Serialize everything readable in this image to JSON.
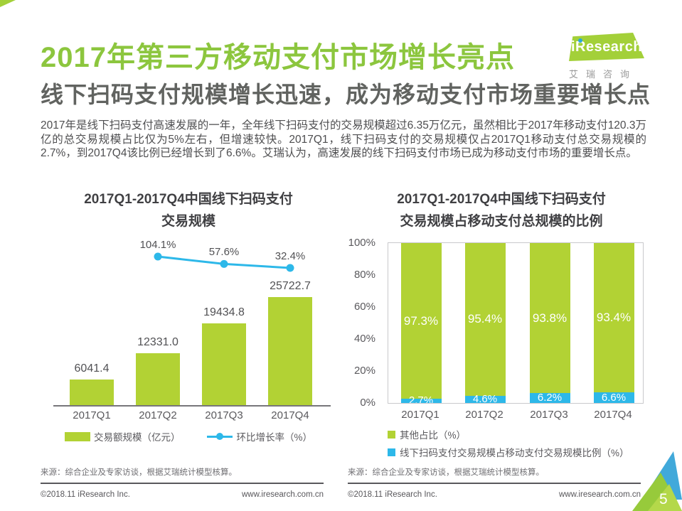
{
  "page": {
    "title": "2017年第三方移动支付市场增长亮点",
    "subtitle": "线下扫码支付规模增长迅速，成为移动支付市场重要增长点",
    "body": "2017年是线下扫码支付高速发展的一年，全年线下扫码支付的交易规模超过6.35万亿元，虽然相比于2017年移动支付120.3万亿的总交易规模占比仅为5%左右，但增速较快。2017Q1，线下扫码支付的交易规模仅占2017Q1移动支付总交易规模的2.7%，到2017Q4该比例已经增长到了6.6%。艾瑞认为，高速发展的线下扫码支付市场已成为移动支付市场的重要增长点。",
    "page_number": "5"
  },
  "logo": {
    "brand": "iResearch",
    "brand_cn": "艾瑞咨询"
  },
  "colors": {
    "title_green": "#8cc63e",
    "logo_green": "#a3d039",
    "bar_green": "#b2d234",
    "line_blue": "#2db8e9",
    "text_dark": "#4e4e50",
    "text_gray": "#6e6d71"
  },
  "chart_data": [
    {
      "type": "bar",
      "title": "2017Q1-2017Q4中国线下扫码支付交易规模",
      "title_lines": [
        "2017Q1-2017Q4中国线下扫码支付",
        "交易规模"
      ],
      "categories": [
        "2017Q1",
        "2017Q2",
        "2017Q3",
        "2017Q4"
      ],
      "series": [
        {
          "name": "交易额规模（亿元）",
          "type": "bar",
          "color": "#b2d234",
          "values": [
            6041.4,
            12331.0,
            19434.8,
            25722.7
          ],
          "labels": [
            "6041.4",
            "12331.0",
            "19434.8",
            "25722.7"
          ]
        },
        {
          "name": "环比增长率（%）",
          "type": "line",
          "color": "#2db8e9",
          "values": [
            null,
            104.1,
            57.6,
            32.4
          ],
          "labels": [
            null,
            "104.1%",
            "57.6%",
            "32.4%"
          ]
        }
      ],
      "grid": false,
      "legend_position": "bottom",
      "source": "来源：综合企业及专家访谈，根据艾瑞统计模型核算。"
    },
    {
      "type": "bar",
      "subtype": "stacked-100",
      "title": "2017Q1-2017Q4中国线下扫码支付交易规模占移动支付总规模的比例",
      "title_lines": [
        "2017Q1-2017Q4中国线下扫码支付",
        "交易规模占移动支付总规模的比例"
      ],
      "categories": [
        "2017Q1",
        "2017Q2",
        "2017Q3",
        "2017Q4"
      ],
      "series": [
        {
          "name": "其他占比（%）",
          "color": "#b2d234",
          "values": [
            97.3,
            95.4,
            93.8,
            93.4
          ],
          "labels": [
            "97.3%",
            "95.4%",
            "93.8%",
            "93.4%"
          ]
        },
        {
          "name": "线下扫码支付交易规模占移动支付交易规模比例（%）",
          "color": "#2db8e9",
          "values": [
            2.7,
            4.6,
            6.2,
            6.6
          ],
          "labels": [
            "2.7%",
            "4.6%",
            "6.2%",
            "6.6%"
          ]
        }
      ],
      "ylim": [
        0,
        100
      ],
      "yticks": [
        "0%",
        "20%",
        "40%",
        "60%",
        "80%",
        "100%"
      ],
      "grid": false,
      "legend_position": "bottom",
      "source": "来源：综合企业及专家访谈，根据艾瑞统计模型核算。"
    }
  ],
  "footer": {
    "copyright": "©2018.11 iResearch Inc.",
    "website": "www.iresearch.com.cn"
  }
}
